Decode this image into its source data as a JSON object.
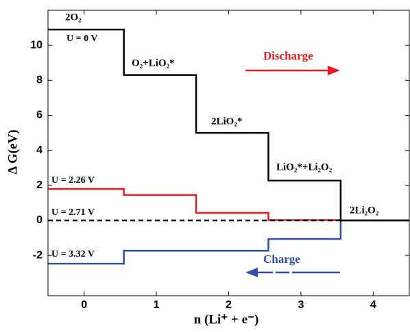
{
  "chart_data": {
    "type": "step",
    "xlabel": "n (Li⁺ + e⁻)",
    "ylabel": "Δ G(eV)",
    "step_edges": [
      -0.5,
      0.55,
      1.55,
      2.55,
      3.55,
      4.5
    ],
    "series": [
      {
        "name": "U = 2.26 V",
        "color": "#e8191f",
        "dashed": false,
        "values": [
          1.8,
          1.45,
          0.43,
          0.02,
          0
        ]
      },
      {
        "name": "U = 3.32 V",
        "color": "#2e4fa3",
        "dashed": false,
        "values": [
          -2.47,
          -1.73,
          -1.73,
          -1.06,
          0
        ]
      },
      {
        "name": "U = 2.71 V",
        "color": "#000000",
        "dashed": true,
        "values": [
          0,
          0,
          0,
          0,
          null
        ]
      },
      {
        "name": "U = 0 V",
        "color": "#000000",
        "dashed": false,
        "values": [
          10.9,
          8.3,
          5.0,
          2.27,
          0
        ]
      }
    ],
    "step_labels": [
      "2O₂",
      "O₂+LiO₂*",
      "2LiO₂*",
      "LiO₂*+Li₂O₂",
      "2Li₂O₂"
    ],
    "annotations": [
      {
        "text": "Discharge",
        "color": "#e8191f"
      },
      {
        "text": "Charge",
        "color": "#2e4fa3"
      }
    ],
    "xlim": [
      -0.5,
      4.5
    ],
    "ylim": [
      -4.3,
      12
    ],
    "xticks": [
      0,
      1,
      2,
      3,
      4
    ],
    "yticks": [
      -2,
      0,
      2,
      4,
      6,
      8,
      10
    ]
  }
}
